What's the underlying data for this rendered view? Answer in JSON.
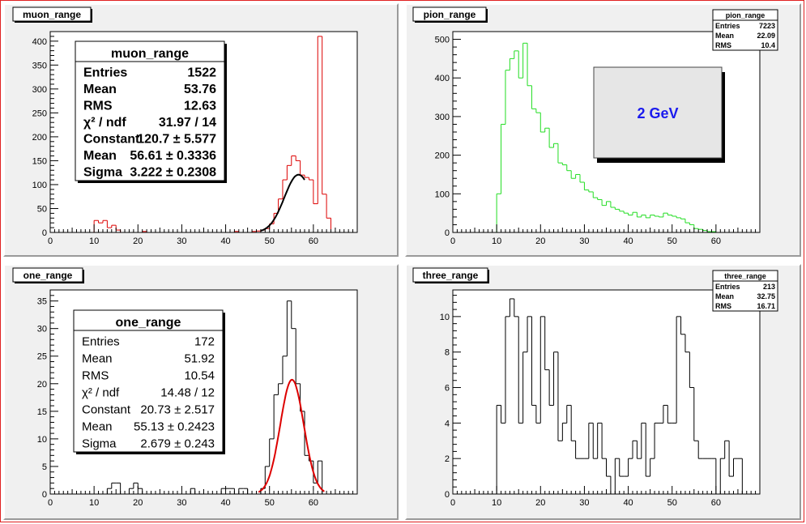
{
  "canvas": {
    "border_color": "#e02020",
    "pad_color": "#f0f0f0",
    "frame_color": "#ffffff"
  },
  "chart_data": [
    {
      "id": "muon",
      "type": "bar",
      "title": "muon_range",
      "xlabel": "",
      "ylabel": "",
      "xlim": [
        0,
        70
      ],
      "ylim": [
        0,
        420
      ],
      "xticks": [
        0,
        10,
        20,
        30,
        40,
        50,
        60
      ],
      "yticks": [
        0,
        50,
        100,
        150,
        200,
        250,
        300,
        350,
        400
      ],
      "bin_width": 1,
      "series": [
        {
          "color": "#dd0000",
          "start": 0,
          "values": [
            0,
            0,
            0,
            0,
            0,
            0,
            0,
            0,
            0,
            0,
            25,
            20,
            25,
            10,
            15,
            5,
            0,
            0,
            0,
            0,
            0,
            2,
            0,
            0,
            0,
            0,
            0,
            0,
            0,
            0,
            0,
            0,
            0,
            0,
            0,
            0,
            0,
            0,
            0,
            0,
            0,
            0,
            2,
            0,
            0,
            0,
            2,
            3,
            5,
            8,
            18,
            40,
            70,
            110,
            140,
            160,
            150,
            120,
            115,
            110,
            60,
            410,
            80,
            30,
            0,
            0,
            0,
            0,
            0,
            0
          ]
        }
      ],
      "fit": {
        "color": "#000000",
        "constant": 120.7,
        "mean": 56.61,
        "sigma": 3.222,
        "range": [
          48,
          58
        ]
      },
      "stats": {
        "title": "muon_range",
        "rows": [
          [
            "Entries",
            "1522"
          ],
          [
            "Mean",
            "53.76"
          ],
          [
            "RMS",
            "12.63"
          ],
          [
            "χ² / ndf",
            "31.97 / 14"
          ],
          [
            "Constant",
            "120.7 ± 5.577"
          ],
          [
            "Mean",
            "56.61 ± 0.3336"
          ],
          [
            "Sigma",
            "3.222 ± 0.2308"
          ]
        ]
      }
    },
    {
      "id": "pion",
      "type": "bar",
      "title": "pion_range",
      "xlabel": "",
      "ylabel": "",
      "xlim": [
        0,
        70
      ],
      "ylim": [
        0,
        520
      ],
      "xticks": [
        0,
        10,
        20,
        30,
        40,
        50,
        60
      ],
      "yticks": [
        0,
        100,
        200,
        300,
        400,
        500
      ],
      "bin_width": 1,
      "series": [
        {
          "color": "#22dd22",
          "start": 0,
          "values": [
            0,
            0,
            0,
            0,
            0,
            0,
            0,
            0,
            0,
            0,
            100,
            280,
            420,
            450,
            470,
            400,
            490,
            380,
            320,
            310,
            260,
            270,
            220,
            230,
            180,
            175,
            160,
            140,
            150,
            130,
            110,
            105,
            90,
            85,
            70,
            80,
            65,
            60,
            55,
            50,
            45,
            52,
            40,
            45,
            38,
            45,
            42,
            40,
            50,
            45,
            42,
            38,
            35,
            25,
            20,
            10,
            8,
            5,
            2,
            2,
            0,
            0,
            0,
            0,
            0,
            0,
            0,
            0,
            0,
            0
          ]
        }
      ],
      "annotation": "2 GeV",
      "stats": {
        "title": "pion_range",
        "rows": [
          [
            "Entries",
            "7223"
          ],
          [
            "Mean",
            "22.09"
          ],
          [
            "RMS",
            "10.4"
          ]
        ]
      }
    },
    {
      "id": "one",
      "type": "bar",
      "title": "one_range",
      "xlabel": "",
      "ylabel": "",
      "xlim": [
        0,
        70
      ],
      "ylim": [
        0,
        37
      ],
      "xticks": [
        0,
        10,
        20,
        30,
        40,
        50,
        60
      ],
      "yticks": [
        0,
        5,
        10,
        15,
        20,
        25,
        30,
        35
      ],
      "bin_width": 1,
      "series": [
        {
          "color": "#000000",
          "start": 0,
          "values": [
            0,
            0,
            0,
            0,
            0,
            0,
            0,
            0,
            0,
            0,
            0,
            0,
            0,
            1,
            2,
            2,
            0,
            0,
            1,
            2,
            1,
            0,
            0,
            0,
            0,
            0,
            0,
            0,
            0,
            0,
            0,
            0,
            1,
            0,
            0,
            0,
            0,
            0,
            0,
            1,
            1,
            1,
            0,
            1,
            1,
            0,
            0,
            0,
            1,
            5,
            10,
            18,
            20,
            25,
            35,
            30,
            20,
            15,
            7,
            6,
            2,
            6,
            0,
            0,
            0,
            0,
            0,
            0,
            0,
            0
          ]
        }
      ],
      "fit": {
        "color": "#dd0000",
        "constant": 20.73,
        "mean": 55.13,
        "sigma": 2.679,
        "range": [
          47.5,
          62.5
        ]
      },
      "stats": {
        "title": "one_range",
        "rows": [
          [
            "Entries",
            "172"
          ],
          [
            "Mean",
            "51.92"
          ],
          [
            "RMS",
            "10.54"
          ],
          [
            "χ² / ndf",
            "14.48 / 12"
          ],
          [
            "Constant",
            "20.73 ± 2.517"
          ],
          [
            "Mean",
            "55.13 ± 0.2423"
          ],
          [
            "Sigma",
            "2.679 ± 0.243"
          ]
        ]
      }
    },
    {
      "id": "three",
      "type": "bar",
      "title": "three_range",
      "xlabel": "",
      "ylabel": "",
      "xlim": [
        0,
        70
      ],
      "ylim": [
        0,
        11.5
      ],
      "xticks": [
        0,
        10,
        20,
        30,
        40,
        50,
        60
      ],
      "yticks": [
        0,
        2,
        4,
        6,
        8,
        10
      ],
      "bin_width": 1,
      "series": [
        {
          "color": "#000000",
          "start": 0,
          "values": [
            0,
            0,
            0,
            0,
            0,
            0,
            0,
            0,
            0,
            0,
            5,
            4,
            10,
            11,
            10,
            4,
            8,
            10,
            5,
            4,
            10,
            7,
            5,
            8,
            3,
            4,
            5,
            3,
            2,
            2,
            2,
            4,
            2,
            4,
            2,
            1,
            0,
            2,
            1,
            1,
            2,
            3,
            2,
            4,
            1,
            2,
            4,
            4,
            5,
            4,
            4,
            10,
            9,
            8,
            6,
            3,
            2,
            2,
            2,
            2,
            0,
            2,
            3,
            1,
            2,
            2,
            0,
            0,
            0,
            0
          ]
        }
      ],
      "stats": {
        "title": "three_range",
        "rows": [
          [
            "Entries",
            "213"
          ],
          [
            "Mean",
            "32.75"
          ],
          [
            "RMS",
            "16.71"
          ]
        ]
      }
    }
  ]
}
